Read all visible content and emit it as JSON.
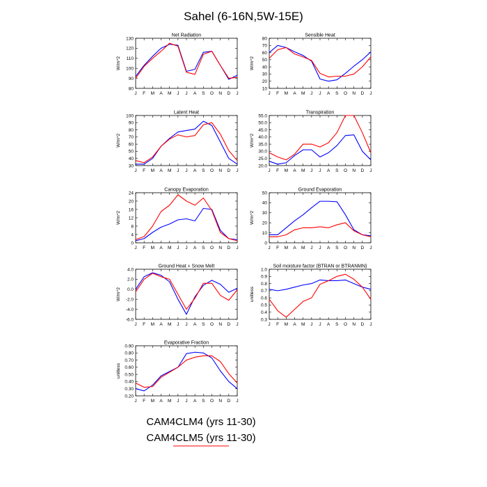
{
  "title": "Sahel (6-16N,5W-15E)",
  "legend": [
    {
      "label": "CAM4CLM4 (yrs 11-30)",
      "color": "#0000ff"
    },
    {
      "label": "CAM4CLM5 (yrs 11-30)",
      "color": "#ff0000"
    }
  ],
  "month_labels": [
    "J",
    "F",
    "M",
    "A",
    "M",
    "J",
    "J",
    "A",
    "S",
    "O",
    "N",
    "D",
    "J"
  ],
  "chart_data": [
    {
      "type": "line",
      "title": "Net Radiation",
      "ylabel": "W/m^2",
      "ylim": [
        80,
        130
      ],
      "yticks": [
        80,
        90,
        100,
        110,
        120,
        130
      ],
      "ytick_labels": [
        "80",
        "90",
        "100",
        "110",
        "120",
        "130"
      ],
      "series": [
        {
          "name": "CAM4CLM4 (yrs 11-30)",
          "values": [
            92,
            103,
            112,
            120,
            124,
            123,
            97,
            99,
            116,
            117,
            103,
            89,
            93
          ]
        },
        {
          "name": "CAM4CLM5 (yrs 11-30)",
          "values": [
            90,
            102,
            110,
            117,
            125,
            122,
            96,
            94,
            114,
            117,
            103,
            90,
            91
          ]
        }
      ]
    },
    {
      "type": "line",
      "title": "Sensible Heat",
      "ylabel": "W/m^2",
      "ylim": [
        10,
        80
      ],
      "yticks": [
        10,
        20,
        30,
        40,
        50,
        60,
        70,
        80
      ],
      "ytick_labels": [
        "10",
        "20",
        "30",
        "40",
        "50",
        "60",
        "70",
        "80"
      ],
      "series": [
        {
          "name": "CAM4CLM4 (yrs 11-30)",
          "values": [
            60,
            70,
            67,
            61,
            56,
            48,
            23,
            20,
            22,
            31,
            41,
            50,
            61
          ]
        },
        {
          "name": "CAM4CLM5 (yrs 11-30)",
          "values": [
            52,
            64,
            67,
            58,
            54,
            49,
            31,
            26,
            27,
            27,
            30,
            40,
            54
          ]
        }
      ]
    },
    {
      "type": "line",
      "title": "Latent Heat",
      "ylabel": "W/m^2",
      "ylim": [
        30,
        100
      ],
      "yticks": [
        30,
        40,
        50,
        60,
        70,
        80,
        90,
        100
      ],
      "ytick_labels": [
        "30",
        "40",
        "50",
        "60",
        "70",
        "80",
        "90",
        "100"
      ],
      "series": [
        {
          "name": "CAM4CLM4 (yrs 11-30)",
          "values": [
            32,
            32,
            40,
            57,
            68,
            77,
            79,
            81,
            92,
            86,
            63,
            40,
            32
          ]
        },
        {
          "name": "CAM4CLM5 (yrs 11-30)",
          "values": [
            37,
            34,
            42,
            57,
            67,
            73,
            70,
            72,
            87,
            90,
            74,
            51,
            37
          ]
        }
      ]
    },
    {
      "type": "line",
      "title": "Transpiration",
      "ylabel": "W/m^2",
      "ylim": [
        20,
        55
      ],
      "yticks": [
        20,
        25,
        30,
        35,
        40,
        45,
        50,
        55
      ],
      "ytick_labels": [
        "20.0",
        "25.0",
        "30.0",
        "35.0",
        "40.0",
        "45.0",
        "50.0",
        "55.0"
      ],
      "series": [
        {
          "name": "CAM4CLM4 (yrs 11-30)",
          "values": [
            23,
            21,
            22,
            27,
            31,
            31,
            26,
            29,
            34,
            41,
            41.5,
            30,
            24
          ]
        },
        {
          "name": "CAM4CLM5 (yrs 11-30)",
          "values": [
            29,
            26,
            24,
            28,
            35,
            35,
            33,
            36,
            43,
            55,
            55,
            43,
            29
          ]
        }
      ]
    },
    {
      "type": "line",
      "title": "Canopy Evaporation",
      "ylabel": "W/m^2",
      "ylim": [
        0,
        24
      ],
      "yticks": [
        0,
        4,
        8,
        12,
        16,
        20,
        24
      ],
      "ytick_labels": [
        "0",
        "4",
        "8",
        "12",
        "16",
        "20",
        "24"
      ],
      "series": [
        {
          "name": "CAM4CLM4 (yrs 11-30)",
          "values": [
            1,
            2,
            5,
            7.5,
            9,
            11,
            11.5,
            10.5,
            16.5,
            16,
            6,
            2,
            1.5
          ]
        },
        {
          "name": "CAM4CLM5 (yrs 11-30)",
          "values": [
            1.5,
            3,
            8,
            15,
            18,
            23,
            20,
            18,
            21.5,
            15.5,
            5,
            2,
            1
          ]
        }
      ]
    },
    {
      "type": "line",
      "title": "Ground Evaporation",
      "ylabel": "W/m^2",
      "ylim": [
        0,
        50
      ],
      "yticks": [
        0,
        10,
        20,
        30,
        40,
        50
      ],
      "ytick_labels": [
        "0",
        "10",
        "20",
        "30",
        "40",
        "50"
      ],
      "series": [
        {
          "name": "CAM4CLM4 (yrs 11-30)",
          "values": [
            8,
            8,
            15,
            22,
            28,
            35,
            41.5,
            41.5,
            41,
            28,
            13,
            8,
            7
          ]
        },
        {
          "name": "CAM4CLM5 (yrs 11-30)",
          "values": [
            6,
            6,
            8,
            13,
            15,
            15,
            16,
            15,
            18,
            20,
            12,
            8,
            6
          ]
        }
      ]
    },
    {
      "type": "line",
      "title": "Ground Heat + Snow Melt",
      "ylabel": "W/m^2",
      "ylim": [
        -6,
        4
      ],
      "yticks": [
        -6,
        -4,
        -2,
        0,
        2,
        4
      ],
      "ytick_labels": [
        "-6.0",
        "-4.0",
        "-2.0",
        "0.0",
        "2.0",
        "4.0"
      ],
      "series": [
        {
          "name": "CAM4CLM4 (yrs 11-30)",
          "values": [
            0,
            2.5,
            3.3,
            2.8,
            1.5,
            -2,
            -5,
            -1.5,
            0.8,
            1.8,
            1,
            -0.6,
            0.2
          ]
        },
        {
          "name": "CAM4CLM5 (yrs 11-30)",
          "values": [
            -0.5,
            2,
            3.2,
            2.5,
            2,
            -1,
            -4,
            -1.8,
            1.2,
            1.2,
            -1.2,
            -2.2,
            -0.1
          ]
        }
      ]
    },
    {
      "type": "line",
      "title": "Soil moisture factor (BTRAN or BTRANMN)",
      "ylabel": "unitless",
      "ylim": [
        0.3,
        1.0
      ],
      "yticks": [
        0.3,
        0.4,
        0.5,
        0.6,
        0.7,
        0.8,
        0.9,
        1.0
      ],
      "ytick_labels": [
        "0.3",
        "0.4",
        "0.5",
        "0.6",
        "0.7",
        "0.8",
        "0.9",
        "1.0"
      ],
      "series": [
        {
          "name": "CAM4CLM4 (yrs 11-30)",
          "values": [
            0.72,
            0.7,
            0.72,
            0.75,
            0.78,
            0.8,
            0.85,
            0.84,
            0.84,
            0.85,
            0.8,
            0.75,
            0.72
          ]
        },
        {
          "name": "CAM4CLM5 (yrs 11-30)",
          "values": [
            0.58,
            0.42,
            0.33,
            0.44,
            0.55,
            0.6,
            0.79,
            0.84,
            0.9,
            0.93,
            0.86,
            0.75,
            0.58
          ]
        }
      ]
    },
    {
      "type": "line",
      "title": "Evaporative Fraction",
      "ylabel": "unitless",
      "ylim": [
        0.2,
        0.9
      ],
      "yticks": [
        0.2,
        0.3,
        0.4,
        0.5,
        0.6,
        0.7,
        0.8,
        0.9
      ],
      "ytick_labels": [
        "0.20",
        "0.30",
        "0.40",
        "0.50",
        "0.60",
        "0.70",
        "0.80",
        "0.90"
      ],
      "series": [
        {
          "name": "CAM4CLM4 (yrs 11-30)",
          "values": [
            0.3,
            0.27,
            0.35,
            0.48,
            0.54,
            0.6,
            0.79,
            0.81,
            0.8,
            0.73,
            0.55,
            0.4,
            0.3
          ]
        },
        {
          "name": "CAM4CLM5 (yrs 11-30)",
          "values": [
            0.38,
            0.32,
            0.33,
            0.46,
            0.53,
            0.6,
            0.7,
            0.74,
            0.76,
            0.76,
            0.68,
            0.51,
            0.38
          ]
        }
      ]
    }
  ]
}
